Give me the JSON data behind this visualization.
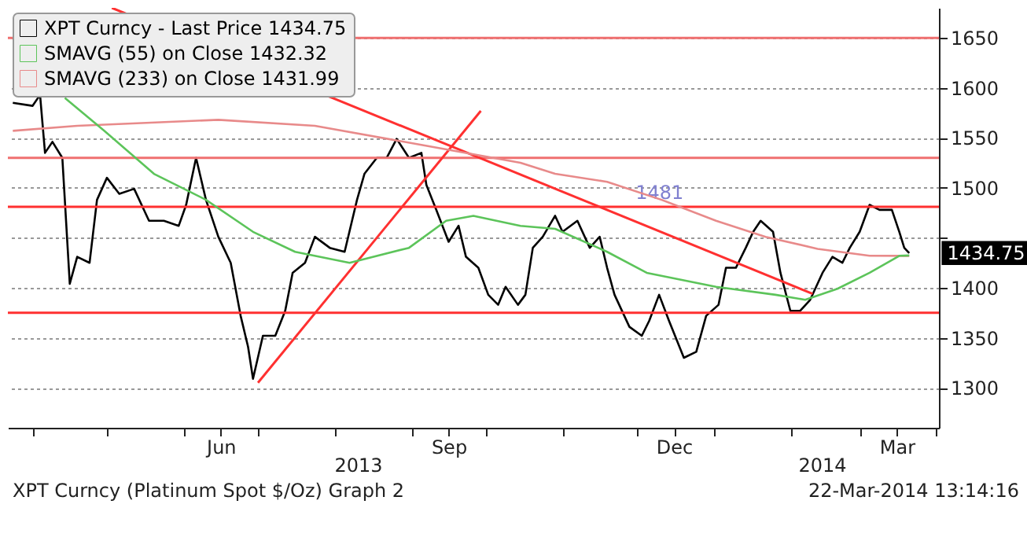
{
  "chart_data": {
    "type": "line",
    "x": [
      "2013-03-24",
      "2013-04-01",
      "2013-04-04",
      "2013-04-06",
      "2013-04-09",
      "2013-04-13",
      "2013-04-16",
      "2013-04-19",
      "2013-04-24",
      "2013-04-27",
      "2013-05-01",
      "2013-05-06",
      "2013-05-12",
      "2013-05-18",
      "2013-05-24",
      "2013-05-30",
      "2013-06-02",
      "2013-06-06",
      "2013-06-10",
      "2013-06-15",
      "2013-06-20",
      "2013-06-24",
      "2013-06-27",
      "2013-06-29",
      "2013-07-03",
      "2013-07-08",
      "2013-07-12",
      "2013-07-15",
      "2013-07-20",
      "2013-07-24",
      "2013-07-30",
      "2013-08-05",
      "2013-08-10",
      "2013-08-13",
      "2013-08-18",
      "2013-08-22",
      "2013-08-26",
      "2013-08-31",
      "2013-09-05",
      "2013-09-07",
      "2013-09-11",
      "2013-09-16",
      "2013-09-20",
      "2013-09-23",
      "2013-09-28",
      "2013-10-02",
      "2013-10-06",
      "2013-10-09",
      "2013-10-14",
      "2013-10-17",
      "2013-10-20",
      "2013-10-24",
      "2013-10-29",
      "2013-11-01",
      "2013-11-07",
      "2013-11-12",
      "2013-11-16",
      "2013-11-19",
      "2013-11-22",
      "2013-11-28",
      "2013-12-03",
      "2013-12-06",
      "2013-12-10",
      "2013-12-14",
      "2013-12-20",
      "2013-12-25",
      "2013-12-29",
      "2014-01-03",
      "2014-01-06",
      "2014-01-10",
      "2014-01-14",
      "2014-01-17",
      "2014-01-20",
      "2014-01-25",
      "2014-01-28",
      "2014-02-01",
      "2014-02-05",
      "2014-02-09",
      "2014-02-14",
      "2014-02-18",
      "2014-02-22",
      "2014-02-25",
      "2014-03-01",
      "2014-03-05",
      "2014-03-09",
      "2014-03-14",
      "2014-03-17",
      "2014-03-19",
      "2014-03-21"
    ],
    "series": [
      {
        "name": "XPT Curncy - Last Price 1434.75",
        "color": "#000000",
        "values": [
          1585,
          1582,
          1593,
          1535,
          1546,
          1530,
          1404,
          1431,
          1425,
          1488,
          1510,
          1494,
          1499,
          1467,
          1467,
          1462,
          1483,
          1530,
          1488,
          1451,
          1425,
          1372,
          1341,
          1309,
          1352,
          1352,
          1377,
          1415,
          1425,
          1451,
          1440,
          1436,
          1488,
          1514,
          1530,
          1530,
          1549,
          1530,
          1535,
          1503,
          1478,
          1446,
          1462,
          1431,
          1420,
          1393,
          1383,
          1401,
          1383,
          1393,
          1440,
          1451,
          1472,
          1456,
          1467,
          1440,
          1451,
          1420,
          1393,
          1361,
          1352,
          1367,
          1393,
          1367,
          1330,
          1336,
          1372,
          1383,
          1420,
          1420,
          1440,
          1456,
          1467,
          1456,
          1415,
          1377,
          1377,
          1388,
          1415,
          1431,
          1425,
          1440,
          1456,
          1483,
          1478,
          1478,
          1456,
          1440,
          1434.75
        ]
      },
      {
        "name": "SMAVG (55) on Close 1432.32",
        "color": "#5cc45a",
        "x": [
          "2013-04-14",
          "2013-04-30",
          "2013-05-20",
          "2013-06-10",
          "2013-06-29",
          "2013-07-16",
          "2013-08-07",
          "2013-08-31",
          "2013-09-15",
          "2013-09-26",
          "2013-10-15",
          "2013-10-29",
          "2013-11-19",
          "2013-12-05",
          "2014-01-02",
          "2014-01-26",
          "2014-02-07",
          "2014-02-20",
          "2014-03-05",
          "2014-03-17",
          "2014-03-21"
        ],
        "values": [
          1590,
          1557,
          1514,
          1488,
          1456,
          1436,
          1425,
          1440,
          1467,
          1472,
          1462,
          1459,
          1436,
          1415,
          1401,
          1393,
          1388,
          1399,
          1415,
          1432,
          1432.32
        ]
      },
      {
        "name": "SMAVG (233) on Close 1431.99",
        "color": "#e88a8a",
        "x": [
          "2013-03-24",
          "2013-04-19",
          "2013-06-15",
          "2013-07-24",
          "2013-09-05",
          "2013-10-15",
          "2013-10-29",
          "2013-11-19",
          "2013-12-11",
          "2014-01-02",
          "2014-01-22",
          "2014-02-12",
          "2014-03-05",
          "2014-03-21"
        ],
        "values": [
          1557,
          1562,
          1568,
          1562,
          1543,
          1525,
          1514,
          1506,
          1488,
          1467,
          1451,
          1439,
          1432,
          1431.99
        ]
      },
      {
        "type": "line",
        "color": "#ff3030",
        "x": [
          "2013-05-03",
          "2014-02-10"
        ],
        "values": [
          1680,
          1394
        ]
      },
      {
        "type": "line",
        "color": "#ff3030",
        "x": [
          "2013-07-01",
          "2013-09-29"
        ],
        "values": [
          1305,
          1577
        ]
      }
    ],
    "xlim": [
      "2013-03-22",
      "2014-04-02"
    ],
    "xticks": [
      {
        "value": "2013-04-01",
        "label": null
      },
      {
        "value": "2013-05-01",
        "label": null
      },
      {
        "value": "2013-06-01",
        "label": null
      },
      {
        "value": "2013-06-16",
        "label": "Jun"
      },
      {
        "value": "2013-07-01",
        "label": null
      },
      {
        "value": "2013-08-01",
        "label": null
      },
      {
        "value": "2013-09-01",
        "label": null
      },
      {
        "value": "2013-09-16",
        "label": "Sep"
      },
      {
        "value": "2013-10-01",
        "label": null
      },
      {
        "value": "2013-11-01",
        "label": null
      },
      {
        "value": "2013-12-01",
        "label": null
      },
      {
        "value": "2013-12-16",
        "label": "Dec"
      },
      {
        "value": "2014-01-01",
        "label": null
      },
      {
        "value": "2014-02-01",
        "label": null
      },
      {
        "value": "2014-03-01",
        "label": null
      },
      {
        "value": "2014-03-16",
        "label": "Mar"
      },
      {
        "value": "2014-04-01",
        "label": null
      }
    ],
    "ylim": [
      1260,
      1680
    ],
    "yticks": [
      1300,
      1350,
      1400,
      {
        "value": 1450,
        "label": null
      },
      1500,
      1550,
      1600,
      1650
    ],
    "ref_lines": [
      {
        "axis": "y",
        "value": 1650,
        "label": null,
        "color": "#f07070"
      },
      {
        "axis": "y",
        "value": 1530,
        "label": null,
        "color": "#f07070"
      },
      {
        "axis": "y",
        "value": 1481,
        "label": "1481",
        "color": "#ff3030"
      },
      {
        "axis": "y",
        "value": 1375,
        "label": null,
        "color": "#ff3030"
      }
    ],
    "annotations": [
      "2013",
      "2014",
      "XPT Curncy (Platinum Spot  $/Oz) Graph 2",
      "22-Mar-2014 13:14:16",
      {
        "text": "1434.75",
        "x": "2014-03-21",
        "y": 1434.75
      }
    ],
    "grid": "y",
    "legend": "top left",
    "marker": "none",
    "line_style": "solid"
  }
}
